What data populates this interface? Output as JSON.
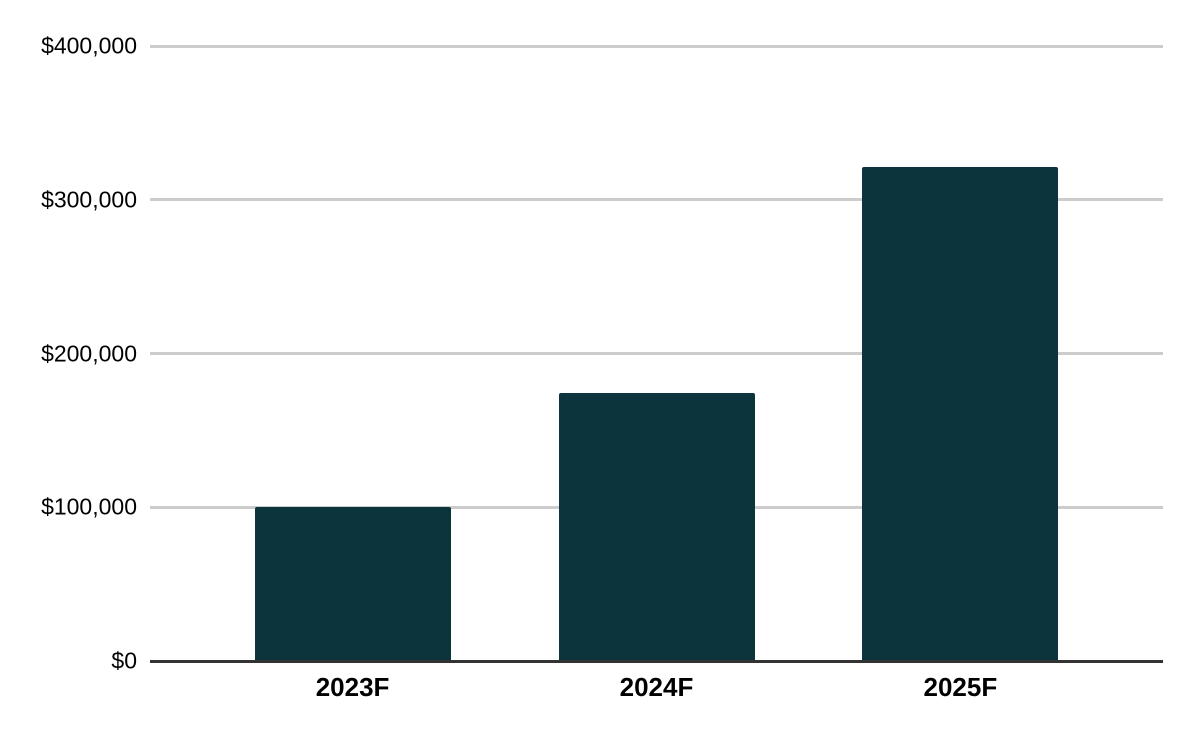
{
  "chart_data": {
    "type": "bar",
    "title": "",
    "xlabel": "",
    "ylabel": "",
    "categories": [
      "2023F",
      "2024F",
      "2025F"
    ],
    "values": [
      100000,
      174000,
      321000
    ],
    "value_format": "currency_usd",
    "ylim": [
      0,
      400000
    ],
    "yticks": [
      {
        "value": 0,
        "label": "$0"
      },
      {
        "value": 100000,
        "label": "$100,000"
      },
      {
        "value": 200000,
        "label": "$200,000"
      },
      {
        "value": 300000,
        "label": "$300,000"
      },
      {
        "value": 400000,
        "label": "$400,000"
      }
    ],
    "grid": true,
    "legend": "none",
    "colors": {
      "bar": "#0c343d",
      "gridline": "#cccccc",
      "axis_line": "#333333",
      "x_tick_label": "#000000",
      "y_tick_label": "#000000",
      "background": "#ffffff"
    }
  }
}
